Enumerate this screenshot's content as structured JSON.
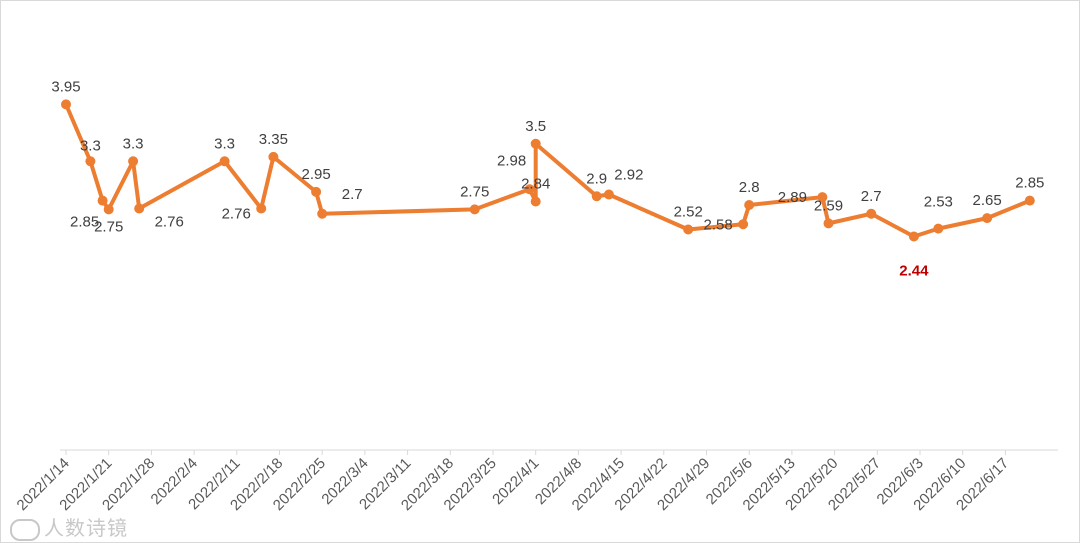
{
  "chart_data": {
    "type": "line",
    "title": "",
    "xlabel": "",
    "ylabel": "",
    "ylim": [
      0,
      4.5
    ],
    "grid": false,
    "legend": "none",
    "line_color": "#ed7d31",
    "min_label_color": "#c00000",
    "x_ticks": [
      "2022/1/14",
      "2022/1/21",
      "2022/1/28",
      "2022/2/4",
      "2022/2/11",
      "2022/2/18",
      "2022/2/25",
      "2022/3/4",
      "2022/3/11",
      "2022/3/18",
      "2022/3/25",
      "2022/4/1",
      "2022/4/8",
      "2022/4/15",
      "2022/4/22",
      "2022/4/29",
      "2022/5/6",
      "2022/5/13",
      "2022/5/20",
      "2022/5/27",
      "2022/6/3",
      "2022/6/10",
      "2022/6/17"
    ],
    "points": [
      {
        "x": "2022/1/14",
        "y": 3.95,
        "label": "3.95"
      },
      {
        "x": "2022/1/18",
        "y": 3.3,
        "label": "3.3"
      },
      {
        "x": "2022/1/20",
        "y": 2.85,
        "label": "2.85"
      },
      {
        "x": "2022/1/21",
        "y": 2.75,
        "label": "2.75"
      },
      {
        "x": "2022/1/25",
        "y": 3.3,
        "label": "3.3"
      },
      {
        "x": "2022/1/26",
        "y": 2.76,
        "label": "2.76"
      },
      {
        "x": "2022/2/9",
        "y": 3.3,
        "label": "3.3"
      },
      {
        "x": "2022/2/15",
        "y": 2.76,
        "label": "2.76"
      },
      {
        "x": "2022/2/17",
        "y": 3.35,
        "label": "3.35"
      },
      {
        "x": "2022/2/24",
        "y": 2.95,
        "label": "2.95"
      },
      {
        "x": "2022/2/25",
        "y": 2.7,
        "label": "2.7"
      },
      {
        "x": "2022/3/22",
        "y": 2.75,
        "label": "2.75"
      },
      {
        "x": "2022/3/31",
        "y": 2.98,
        "label": "2.98"
      },
      {
        "x": "2022/4/1",
        "y": 2.84,
        "label": "2.84"
      },
      {
        "x": "2022/4/1",
        "y": 3.5,
        "label": "3.5"
      },
      {
        "x": "2022/4/11",
        "y": 2.9,
        "label": "2.9"
      },
      {
        "x": "2022/4/13",
        "y": 2.92,
        "label": "2.92"
      },
      {
        "x": "2022/4/26",
        "y": 2.52,
        "label": "2.52"
      },
      {
        "x": "2022/5/5",
        "y": 2.58,
        "label": "2.58"
      },
      {
        "x": "2022/5/6",
        "y": 2.8,
        "label": "2.8"
      },
      {
        "x": "2022/5/18",
        "y": 2.89,
        "label": "2.89"
      },
      {
        "x": "2022/5/19",
        "y": 2.59,
        "label": "2.59"
      },
      {
        "x": "2022/5/26",
        "y": 2.7,
        "label": "2.7"
      },
      {
        "x": "2022/6/2",
        "y": 2.44,
        "label": "2.44",
        "highlight": true
      },
      {
        "x": "2022/6/6",
        "y": 2.53,
        "label": "2.53"
      },
      {
        "x": "2022/6/14",
        "y": 2.65,
        "label": "2.65"
      },
      {
        "x": "2022/6/21",
        "y": 2.85,
        "label": "2.85"
      }
    ]
  },
  "watermark": {
    "text": "人数诗镜"
  }
}
